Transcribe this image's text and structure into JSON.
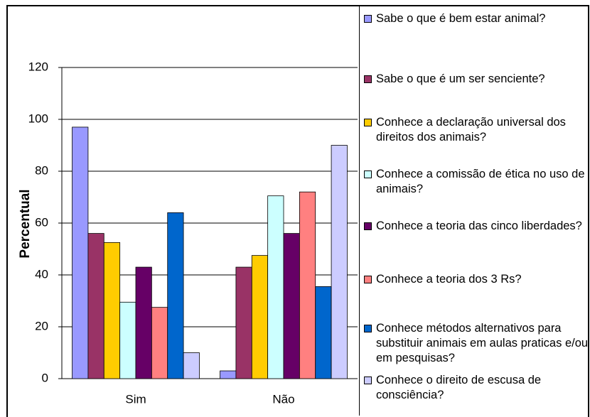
{
  "chart_data": {
    "type": "bar",
    "ylabel": "Percentual",
    "categories": [
      "Sim",
      "Não"
    ],
    "ylim": [
      0,
      120
    ],
    "yticks": [
      0,
      20,
      40,
      60,
      80,
      100,
      120
    ],
    "grid": true,
    "series": [
      {
        "name": "Sabe o que é bem estar animal?",
        "color": "#9999ff",
        "values": [
          97,
          3
        ]
      },
      {
        "name": "Sabe o que é um ser senciente?",
        "color": "#993366",
        "values": [
          56,
          43
        ]
      },
      {
        "name": "Conhece a declaração universal dos direitos dos animais?",
        "color": "#ffcc00",
        "values": [
          52.5,
          47.5
        ]
      },
      {
        "name": "Conhece a comissão de ética no uso de animais?",
        "color": "#ccffff",
        "values": [
          29.5,
          70.5
        ]
      },
      {
        "name": "Conhece a teoria das cinco liberdades?",
        "color": "#660066",
        "values": [
          43,
          56
        ]
      },
      {
        "name": "Conhece a teoria dos 3 Rs?",
        "color": "#ff8080",
        "values": [
          27.5,
          72
        ]
      },
      {
        "name": "Conhece métodos alternativos para substituir animais em aulas praticas e/ou em pesquisas?",
        "color": "#0066cc",
        "values": [
          64,
          35.5
        ]
      },
      {
        "name": "Conhece o direito de escusa de consciência?",
        "color": "#ccccff",
        "values": [
          10,
          90
        ]
      }
    ]
  }
}
